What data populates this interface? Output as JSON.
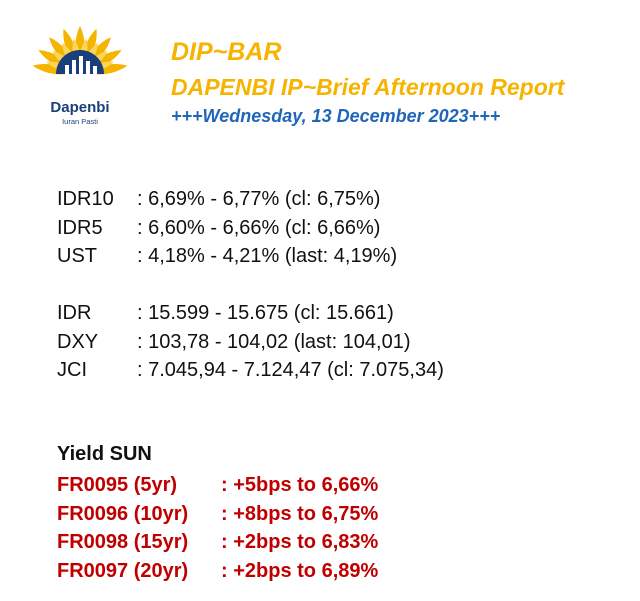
{
  "brand": {
    "name": "Dapenbi",
    "tagline": "Iuran Pasti"
  },
  "header": {
    "title": "DIP~BAR",
    "subtitle": "DAPENBI IP~Brief Afternoon Report",
    "date": "+++Wednesday, 13 December 2023+++"
  },
  "rates": [
    {
      "label": "IDR10",
      "value": ": 6,69% - 6,77% (cl: 6,75%)"
    },
    {
      "label": "IDR5",
      "value": ": 6,60% - 6,66% (cl: 6,66%)"
    },
    {
      "label": "UST",
      "value": ": 4,18% - 4,21% (last: 4,19%)"
    }
  ],
  "markets": [
    {
      "label": "IDR",
      "value": ": 15.599 - 15.675 (cl: 15.661)"
    },
    {
      "label": "DXY",
      "value": ": 103,78 - 104,02 (last: 104,01)"
    },
    {
      "label": "JCI",
      "value": ": 7.045,94 - 7.124,47 (cl: 7.075,34)"
    }
  ],
  "yield": {
    "title": "Yield SUN",
    "items": [
      {
        "label": "FR0095 (5yr)",
        "value": ": +5bps to 6,66%"
      },
      {
        "label": "FR0096 (10yr)",
        "value": ": +8bps to 6,75%"
      },
      {
        "label": "FR0098 (15yr)",
        "value": ": +2bps to 6,83%"
      },
      {
        "label": "FR0097 (20yr)",
        "value": ": +2bps to 6,89%"
      }
    ]
  },
  "colors": {
    "title": "#f5b400",
    "date": "#1f66b8",
    "yield": "#c00000",
    "brand": "#1a3f7a"
  }
}
